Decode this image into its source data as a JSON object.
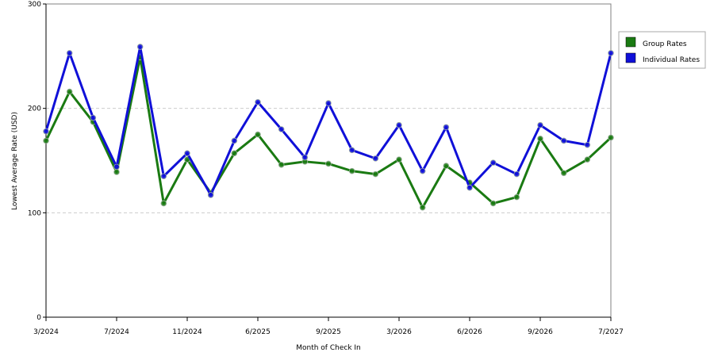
{
  "chart_data": {
    "type": "line",
    "xlabel": "Month of Check In",
    "ylabel": "Lowest Average Rate (USD)",
    "ylim": [
      0,
      300
    ],
    "yticks": [
      0,
      100,
      200,
      300
    ],
    "x_tick_labels": [
      "3/2024",
      "7/2024",
      "11/2024",
      "6/2025",
      "9/2025",
      "3/2026",
      "6/2026",
      "9/2026",
      "7/2027"
    ],
    "x_tick_points": [
      0,
      3,
      6,
      9,
      12,
      15,
      18,
      21,
      24
    ],
    "grid": "horizontal dashed",
    "legend_position": "right",
    "series": [
      {
        "name": "Group Rates",
        "color": "#1a7a12",
        "values": [
          169,
          216,
          187,
          139,
          249,
          109,
          151,
          119,
          157,
          175,
          146,
          149,
          147,
          140,
          137,
          151,
          105,
          145,
          129,
          109,
          115,
          171,
          138,
          151,
          172
        ]
      },
      {
        "name": "Individual Rates",
        "color": "#1010d8",
        "values": [
          178,
          253,
          191,
          144,
          259,
          135,
          157,
          117,
          169,
          206,
          180,
          153,
          205,
          160,
          152,
          184,
          140,
          182,
          124,
          148,
          137,
          184,
          169,
          165,
          253
        ]
      }
    ]
  }
}
